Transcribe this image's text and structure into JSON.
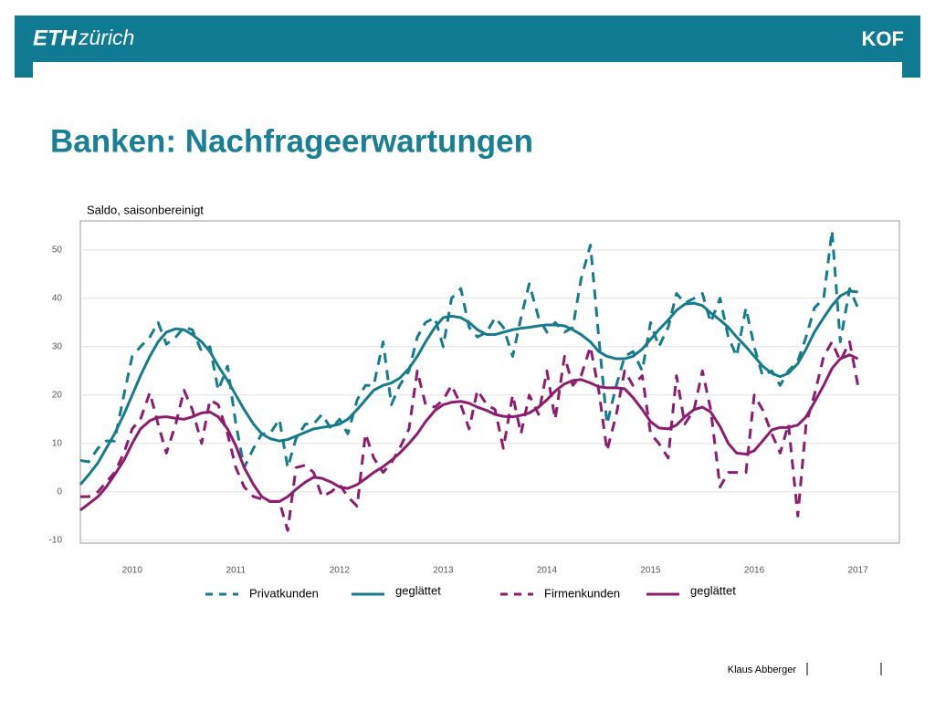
{
  "header": {
    "brand_bold": "ETH",
    "brand_rest": "zürich",
    "logo": "KOF"
  },
  "footer": {
    "author": "Klaus Abberger"
  },
  "chart_data": {
    "type": "line",
    "title": "Banken: Nachfrageerwartungen",
    "ylabel": "Saldo, saisonbereinigt",
    "x": [
      2010,
      2010.08,
      2010.17,
      2010.25,
      2010.33,
      2010.42,
      2010.5,
      2010.58,
      2010.67,
      2010.75,
      2010.83,
      2010.92,
      2011,
      2011.08,
      2011.17,
      2011.25,
      2011.33,
      2011.42,
      2011.5,
      2011.58,
      2011.67,
      2011.75,
      2011.83,
      2011.92,
      2012,
      2012.08,
      2012.17,
      2012.25,
      2012.33,
      2012.42,
      2012.5,
      2012.58,
      2012.67,
      2012.75,
      2012.83,
      2012.92,
      2013,
      2013.08,
      2013.17,
      2013.25,
      2013.33,
      2013.42,
      2013.5,
      2013.58,
      2013.67,
      2013.75,
      2013.83,
      2013.92,
      2014,
      2014.08,
      2014.17,
      2014.25,
      2014.33,
      2014.42,
      2014.5,
      2014.58,
      2014.67,
      2014.75,
      2014.83,
      2014.92,
      2015,
      2015.08,
      2015.17,
      2015.25,
      2015.33,
      2015.42,
      2015.5,
      2015.58,
      2015.67,
      2015.75,
      2015.83,
      2015.92,
      2016,
      2016.08,
      2016.17,
      2016.25,
      2016.33,
      2016.42,
      2016.5,
      2016.58,
      2016.67,
      2016.75,
      2016.83,
      2016.92,
      2017,
      2017.08,
      2017.17,
      2017.25,
      2017.33,
      2017.42,
      2017.5
    ],
    "xlim": [
      2010,
      2017.9
    ],
    "xticks": [
      {
        "value": 2010.5,
        "label": "2010"
      },
      {
        "value": 2011.5,
        "label": "2011"
      },
      {
        "value": 2012.5,
        "label": "2012"
      },
      {
        "value": 2013.5,
        "label": "2013"
      },
      {
        "value": 2014.5,
        "label": "2014"
      },
      {
        "value": 2015.5,
        "label": "2015"
      },
      {
        "value": 2016.5,
        "label": "2016"
      },
      {
        "value": 2017.5,
        "label": "2017"
      }
    ],
    "ylim": [
      -10.6,
      56
    ],
    "yticks": [
      -10,
      0,
      10,
      20,
      30,
      40,
      50
    ],
    "grid": true,
    "legend": "bottom",
    "series": [
      {
        "name": "Privatkunden",
        "color": "#167b8c",
        "style": "dashed",
        "values": [
          6.5,
          6.2,
          9,
          10.5,
          10.5,
          20,
          28,
          30,
          32,
          35,
          30.5,
          32,
          34,
          33.5,
          29,
          30,
          21,
          26,
          14,
          5,
          9,
          12,
          12,
          15,
          5,
          11,
          14,
          14,
          16,
          13,
          15,
          12,
          19,
          22,
          22,
          31,
          18,
          22,
          25,
          32,
          35,
          36,
          30,
          40,
          42,
          34,
          32,
          33,
          36,
          34,
          28,
          36,
          43,
          36,
          33,
          35,
          33,
          34,
          44,
          51,
          32,
          14,
          22,
          28,
          29,
          25,
          35,
          30,
          34,
          41,
          39,
          40,
          41,
          35,
          40,
          32,
          28,
          38,
          30,
          24,
          25,
          22,
          25,
          27,
          32,
          38,
          40,
          54,
          31,
          42,
          38
        ]
      },
      {
        "name": "geglättet",
        "color": "#167b8c",
        "style": "solid",
        "values": [
          1.5,
          3.5,
          6,
          9,
          12,
          16,
          20,
          24,
          28,
          31,
          33,
          33.7,
          33.5,
          32.5,
          31,
          29,
          26,
          23,
          20,
          17,
          14,
          12,
          11,
          10.5,
          10.8,
          11.5,
          12.3,
          13,
          13.3,
          13.6,
          14,
          15,
          17,
          19,
          21,
          22,
          22.5,
          23.5,
          25.5,
          28,
          31,
          34,
          36,
          36.3,
          36,
          35,
          33.5,
          32.5,
          32.5,
          33,
          33.5,
          33.8,
          34,
          34.3,
          34.5,
          34.5,
          34.3,
          33.5,
          32.5,
          31,
          29,
          28,
          27.5,
          27.5,
          28,
          29.5,
          31.5,
          33.5,
          35.5,
          37.5,
          38.8,
          39,
          38.5,
          37,
          35.5,
          34,
          32,
          30,
          28,
          26,
          24.5,
          23.8,
          24.5,
          26.5,
          29.5,
          33,
          36,
          38.5,
          40.5,
          41.5,
          41.3
        ]
      },
      {
        "name": "Firmenkunden",
        "color": "#8c1d6e",
        "style": "dashed",
        "values": [
          -1,
          -1,
          0,
          2,
          4,
          8,
          13,
          15,
          20.5,
          14,
          8,
          14,
          21,
          17,
          10,
          19,
          18,
          12,
          5,
          1,
          -1,
          -1.5,
          -2,
          -2,
          -8,
          5,
          5.5,
          4,
          -1,
          0,
          1.5,
          -1,
          -3,
          12,
          7,
          4,
          6,
          9,
          13,
          25,
          18,
          17.5,
          19,
          22,
          18,
          13,
          21,
          18,
          17,
          9,
          20,
          12,
          20,
          16,
          25,
          15,
          28,
          22,
          24,
          30,
          21,
          8.5,
          16,
          25,
          22,
          24,
          12,
          10,
          7,
          24,
          14,
          17,
          25,
          17,
          1,
          4,
          4,
          4,
          20,
          17,
          12,
          8,
          14,
          -5,
          14,
          20,
          28,
          31,
          27,
          31,
          22
        ]
      },
      {
        "name": "geglättet",
        "color": "#8c1d6e",
        "style": "solid",
        "values": [
          -3.8,
          -2.5,
          -1,
          1,
          3.5,
          6.5,
          10,
          13,
          14.7,
          15.4,
          15.5,
          15.2,
          15,
          15.5,
          16.3,
          16.5,
          15.5,
          13,
          9.5,
          5,
          1.5,
          -1,
          -2,
          -2,
          -1,
          0.5,
          2,
          3,
          2.8,
          2,
          1,
          0.7,
          1.5,
          2.7,
          4,
          5.2,
          6.5,
          8,
          10,
          12,
          14.5,
          16.8,
          18,
          18.5,
          18.7,
          18.3,
          17.5,
          16.8,
          16,
          15.6,
          15.5,
          15.8,
          16.3,
          17.5,
          19,
          20.8,
          22.3,
          23,
          23.2,
          22.5,
          21.7,
          21.5,
          21.5,
          21.3,
          19.5,
          17,
          14.5,
          13.2,
          13,
          13.8,
          15.5,
          17,
          17.5,
          16.5,
          13.5,
          10,
          8,
          7.8,
          8.5,
          10.5,
          12.8,
          13.3,
          13.3,
          13.8,
          15.5,
          18.5,
          22,
          25.5,
          27.5,
          28.3,
          27.5
        ]
      }
    ]
  }
}
